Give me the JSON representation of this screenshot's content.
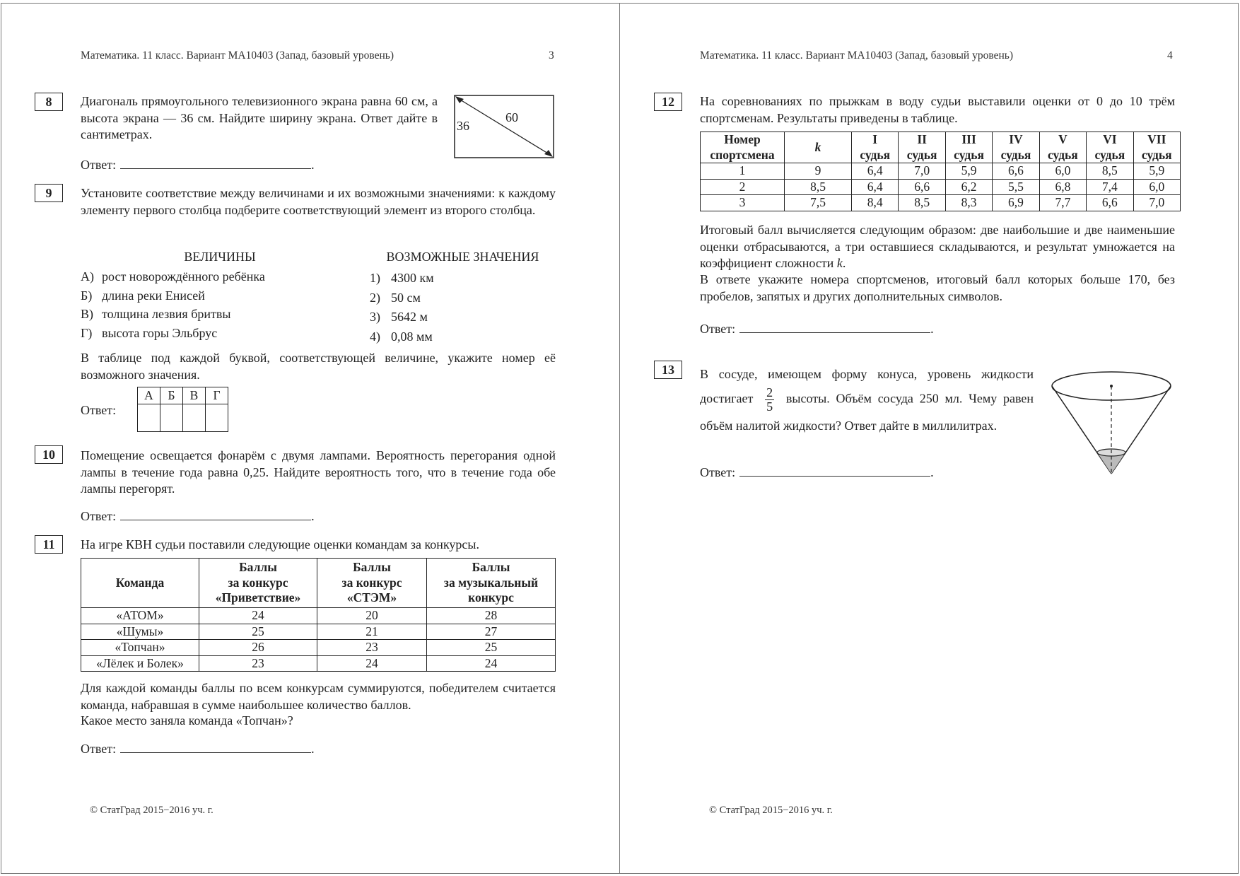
{
  "header_text": "Математика. 11 класс. Вариант МА10403 (Запад, базовый уровень)",
  "footer_text": "© СтатГрад 2015−2016 уч. г.",
  "answer_label": "Ответ:",
  "left_page": {
    "page_number": "3",
    "q8": {
      "number": "8",
      "text": "Диагональ прямоугольного телевизионного экрана равна 60 см, а высота экрана — 36 см. Найдите ширину экрана. Ответ дайте в сантиметрах.",
      "diagram_labels": {
        "height": "36",
        "diagonal": "60"
      }
    },
    "q9": {
      "number": "9",
      "text": "Установите соответствие между величинами и их возможными значениями: к каждому элементу первого столбца подберите соответствующий элемент из второго столбца.",
      "left_heading": "ВЕЛИЧИНЫ",
      "right_heading": "ВОЗМОЖНЫЕ ЗНАЧЕНИЯ",
      "left_items": [
        {
          "key": "А)",
          "text": "рост новорождённого ребёнка"
        },
        {
          "key": "Б)",
          "text": "длина реки Енисей"
        },
        {
          "key": "В)",
          "text": "толщина лезвия бритвы"
        },
        {
          "key": "Г)",
          "text": "высота горы Эльбрус"
        }
      ],
      "right_items": [
        {
          "key": "1)",
          "text": "4300 км"
        },
        {
          "key": "2)",
          "text": "50 см"
        },
        {
          "key": "3)",
          "text": "5642 м"
        },
        {
          "key": "4)",
          "text": "0,08 мм"
        }
      ],
      "instruction": "В таблице под каждой буквой, соответствующей величине, укажите номер её возможного значения.",
      "answer_letters": [
        "А",
        "Б",
        "В",
        "Г"
      ]
    },
    "q10": {
      "number": "10",
      "text": "Помещение освещается фонарём с двумя лампами. Вероятность перегорания одной лампы в течение года равна 0,25. Найдите вероятность того, что в течение года обе лампы перегорят."
    },
    "q11": {
      "number": "11",
      "text": "На игре КВН судьи поставили следующие оценки командам за конкурсы.",
      "headers": [
        "Команда",
        "Баллы\nза конкурс\n«Приветствие»",
        "Баллы\nза конкурс\n«СТЭМ»",
        "Баллы\nза музыкальный\nконкурс"
      ],
      "rows": [
        [
          "«АТОМ»",
          "24",
          "20",
          "28"
        ],
        [
          "«Шумы»",
          "25",
          "21",
          "27"
        ],
        [
          "«Топчан»",
          "26",
          "23",
          "25"
        ],
        [
          "«Лёлек и Болек»",
          "23",
          "24",
          "24"
        ]
      ],
      "after_text": "Для каждой команды баллы по всем конкурсам суммируются, победителем считается команда, набравшая в сумме наибольшее количество баллов.",
      "question": "Какое место заняла команда «Топчан»?"
    }
  },
  "right_page": {
    "page_number": "4",
    "q12": {
      "number": "12",
      "text": "На соревнованиях по прыжкам в воду судьи выставили оценки от 0 до 10 трём спортсменам. Результаты приведены в таблице.",
      "headers_top": [
        "Номер",
        "k",
        "I",
        "II",
        "III",
        "IV",
        "V",
        "VI",
        "VII"
      ],
      "headers_bottom": [
        "спортсмена",
        "судья",
        "судья",
        "судья",
        "судья",
        "судья",
        "судья",
        "судья"
      ],
      "rows": [
        [
          "1",
          "9",
          "6,4",
          "7,0",
          "5,9",
          "6,6",
          "6,0",
          "8,5",
          "5,9"
        ],
        [
          "2",
          "8,5",
          "6,4",
          "6,6",
          "6,2",
          "5,5",
          "6,8",
          "7,4",
          "6,0"
        ],
        [
          "3",
          "7,5",
          "8,4",
          "8,5",
          "8,3",
          "6,9",
          "7,7",
          "6,6",
          "7,0"
        ]
      ],
      "after_text_1": "Итоговый балл вычисляется следующим образом: две наибольшие и две наименьшие оценки отбрасываются, а три оставшиеся складываются, и результат умножается на коэффициент сложности",
      "after_text_k": "k",
      "after_text_2": "В ответе укажите номера спортсменов, итоговый балл которых больше 170, без пробелов, запятых и других дополнительных символов."
    },
    "q13": {
      "number": "13",
      "text_before": "В сосуде, имеющем форму конуса, уровень жидкости достигает",
      "fraction_num": "2",
      "fraction_den": "5",
      "text_after": "высоты. Объём сосуда 250 мл. Чему равен объём налитой жидкости? Ответ дайте в миллилитрах."
    }
  }
}
